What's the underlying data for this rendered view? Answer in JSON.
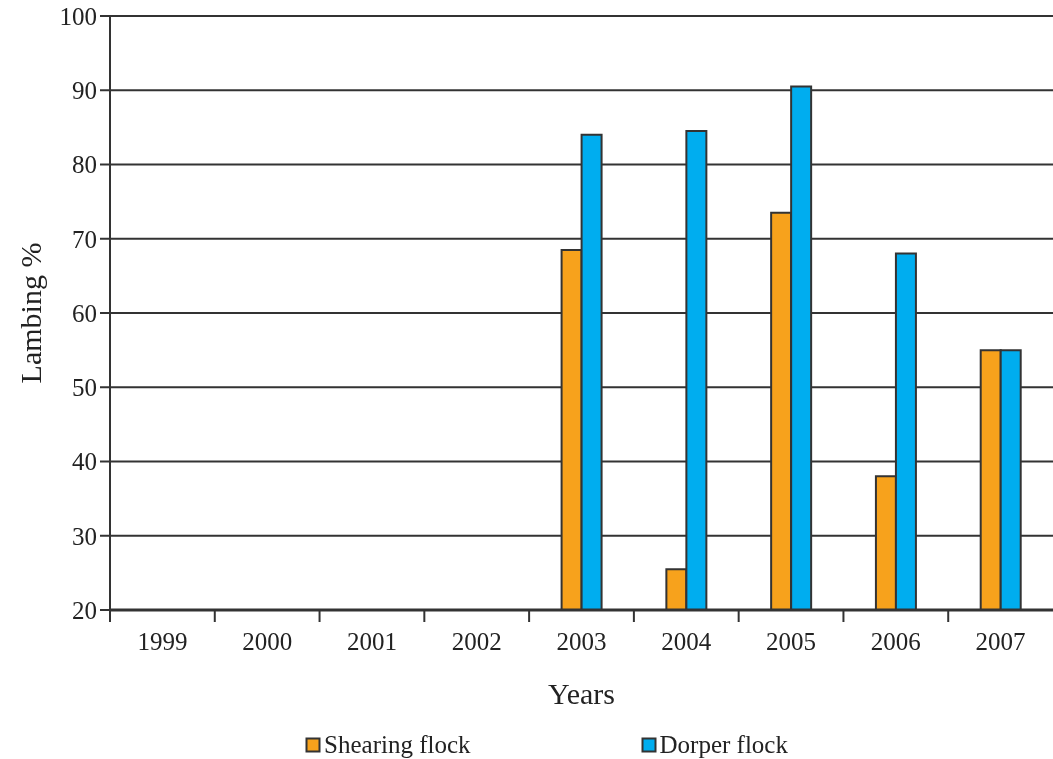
{
  "chart_data": {
    "type": "bar",
    "xlabel": "Years",
    "ylabel": "Lambing %",
    "categories": [
      "1999",
      "2000",
      "2001",
      "2002",
      "2003",
      "2004",
      "2005",
      "2006",
      "2007"
    ],
    "series": [
      {
        "name": "Shearing flock",
        "color": "#f7a21c",
        "values": [
          null,
          null,
          null,
          null,
          68.5,
          25.5,
          73.5,
          38,
          55
        ]
      },
      {
        "name": "Dorper flock",
        "color": "#00adef",
        "values": [
          null,
          null,
          null,
          null,
          84,
          84.5,
          90.5,
          68,
          55
        ]
      }
    ],
    "ylim": [
      20,
      100
    ],
    "yticks": [
      20,
      30,
      40,
      50,
      60,
      70,
      80,
      90,
      100
    ],
    "grid": "y",
    "legend": "bottom"
  }
}
